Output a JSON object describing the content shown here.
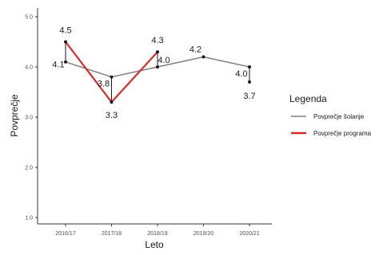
{
  "chart_data": {
    "type": "line",
    "categories": [
      "2016/17",
      "2017/18",
      "2018/19",
      "2019/20",
      "2020/21"
    ],
    "xlabel": "Leto",
    "ylabel": "Povprečje",
    "ylim": [
      1.0,
      5.0
    ],
    "yticks": [
      "1.0",
      "2.0",
      "3.0",
      "4.0",
      "5.0"
    ],
    "grid": false,
    "legend": {
      "title": "Legenda",
      "position": "right",
      "entries": [
        {
          "label": "Povprečje šolanje",
          "color": "#808080"
        },
        {
          "label": "Povprečje programa",
          "color": "#d62a2a"
        }
      ]
    },
    "series": [
      {
        "key": "school",
        "color": "#808080",
        "values": [
          4.1,
          3.8,
          4.0,
          4.2,
          4.0
        ],
        "labels": [
          "4.1",
          "3.8",
          "4.0",
          "4.2",
          "4.0"
        ]
      },
      {
        "key": "program",
        "color": "#d62a2a",
        "values": [
          4.5,
          3.3,
          4.3,
          null,
          3.7
        ],
        "labels": [
          "4.5",
          "3.3",
          "4.3",
          null,
          "3.7"
        ]
      }
    ]
  }
}
